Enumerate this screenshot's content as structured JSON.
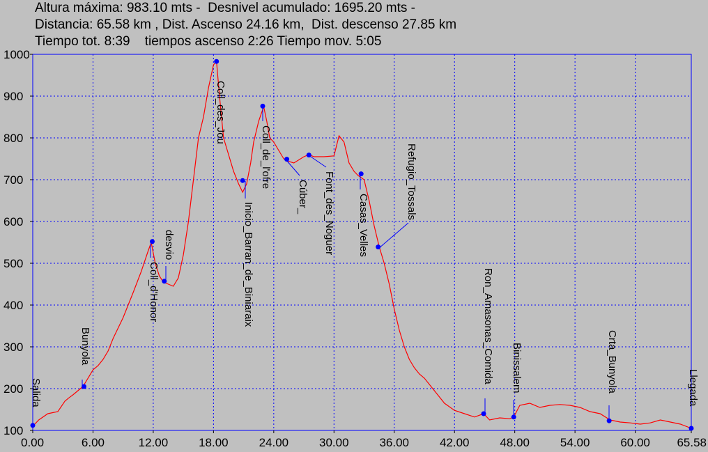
{
  "header": {
    "line1": "Altura máxima: 983.10 mts -  Desnivel acumulado: 1695.20 mts -",
    "line2": "Distancia: 65.58 km , Dist. Ascenso 24.16 km,  Dist. descenso 27.85 km",
    "line3": "Tiempo tot. 8:39    tiempos ascenso 2:26 Tiempo mov. 5:05"
  },
  "chart_data": {
    "type": "line",
    "xlim": [
      0,
      65.58
    ],
    "ylim": [
      100,
      1000
    ],
    "x_ticks": [
      0,
      6,
      12,
      18,
      24,
      30,
      36,
      42,
      48,
      54,
      60,
      65.58
    ],
    "x_tick_labels": [
      "0.00",
      "6.00",
      "12.00",
      "18.00",
      "24.00",
      "30.00",
      "36.00",
      "42.00",
      "48.00",
      "54.00",
      "60.00",
      "65.58"
    ],
    "y_ticks": [
      100,
      200,
      300,
      400,
      500,
      600,
      700,
      800,
      900,
      1000
    ],
    "y_tick_labels": [
      "100",
      "200",
      "300",
      "400",
      "500",
      "600",
      "700",
      "800",
      "900",
      "1000"
    ],
    "grid": true,
    "colors": {
      "line": "#ff0000",
      "grid": "#0000ff",
      "waypoint": "#0000ff",
      "background": "#c0c0c0"
    },
    "series": [
      {
        "x": [
          0,
          0.6,
          1.5,
          2.5,
          3.2,
          3.6,
          4.0,
          4.5,
          5.0,
          5.5,
          6.0,
          6.5,
          7.0,
          7.5,
          8.0,
          8.5,
          9.0,
          10.0,
          10.8,
          11.5,
          11.8,
          12.2,
          12.6,
          13.0,
          13.5,
          14.0,
          14.5,
          15.0,
          15.5,
          16.0,
          16.5,
          17.0,
          17.5,
          18.0,
          18.3,
          18.6,
          19.0,
          19.5,
          20.0,
          20.5,
          20.9,
          21.3,
          21.7,
          22.0,
          22.5,
          23.0,
          23.3,
          23.6,
          24.0,
          24.5,
          25.0,
          25.3,
          26.0,
          27.0,
          27.5,
          28.0,
          29.0,
          30.0,
          30.5,
          31.0,
          31.5,
          32.0,
          32.4,
          33.0,
          33.5,
          34.0,
          34.5,
          35.0,
          35.5,
          36.0,
          36.5,
          37.0,
          37.5,
          38.0,
          38.5,
          39.0,
          40.0,
          41.0,
          42.0,
          43.0,
          44.0,
          44.9,
          45.5,
          46.5,
          47.5,
          47.9,
          48.5,
          49.5,
          50.5,
          51.5,
          52.5,
          53.5,
          54.5,
          55.5,
          56.5,
          57.5,
          58.5,
          59.5,
          60.5,
          61.5,
          62.5,
          63.5,
          64.5,
          65.58
        ],
        "y": [
          110,
          125,
          140,
          145,
          170,
          178,
          185,
          195,
          205,
          225,
          245,
          255,
          270,
          290,
          320,
          345,
          370,
          430,
          480,
          530,
          550,
          500,
          470,
          455,
          450,
          445,
          465,
          520,
          600,
          700,
          800,
          850,
          920,
          975,
          983,
          900,
          800,
          760,
          720,
          690,
          670,
          690,
          740,
          790,
          840,
          875,
          840,
          800,
          790,
          770,
          750,
          745,
          740,
          755,
          760,
          755,
          755,
          757,
          805,
          790,
          740,
          720,
          710,
          700,
          650,
          590,
          540,
          500,
          450,
          390,
          340,
          300,
          270,
          250,
          235,
          225,
          195,
          165,
          148,
          140,
          132,
          140,
          125,
          130,
          128,
          132,
          160,
          165,
          155,
          160,
          162,
          160,
          155,
          145,
          140,
          125,
          120,
          118,
          115,
          118,
          125,
          120,
          115,
          105
        ]
      }
    ],
    "waypoints": [
      {
        "name": "Salida",
        "x": 0,
        "y": 112
      },
      {
        "name": "Bunyola",
        "x": 5.1,
        "y": 205
      },
      {
        "name": "Coll_d'Honor",
        "x": 11.9,
        "y": 552
      },
      {
        "name": "desvio",
        "x": 13.1,
        "y": 457
      },
      {
        "name": "Coll_des_Jou",
        "x": 18.3,
        "y": 983
      },
      {
        "name": "Inicio_Barran_de_Biniaraix",
        "x": 20.9,
        "y": 698
      },
      {
        "name": "Coll_de_l'ofre",
        "x": 22.9,
        "y": 876
      },
      {
        "name": "Cúber_",
        "x": 25.3,
        "y": 749
      },
      {
        "name": "Font_des_Noguer",
        "x": 27.5,
        "y": 759
      },
      {
        "name": "Casas_Velles",
        "x": 32.7,
        "y": 714
      },
      {
        "name": "Refugio_Tossals",
        "x": 34.4,
        "y": 539
      },
      {
        "name": "Ron_Amasonas_Comida",
        "x": 44.9,
        "y": 140
      },
      {
        "name": "Binissalem",
        "x": 47.9,
        "y": 132
      },
      {
        "name": "Crta_Bunyola",
        "x": 57.4,
        "y": 123
      },
      {
        "name": "Llegada",
        "x": 65.58,
        "y": 105
      }
    ]
  }
}
